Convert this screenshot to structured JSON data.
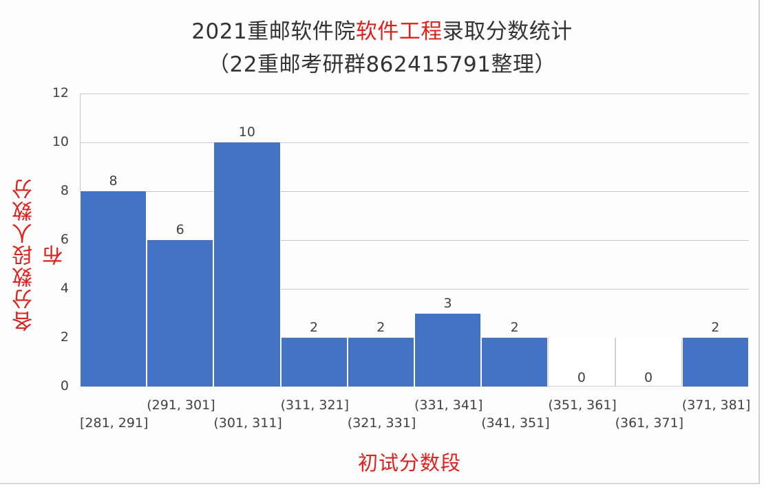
{
  "title": {
    "line1_pre": "2021重邮软件院",
    "line1_highlight": "软件工程",
    "line1_post": "录取分数统计",
    "line2": "（22重邮考研群862415791整理）"
  },
  "colors": {
    "bar": "#4472c4",
    "highlight_text": "#e0201c",
    "axis_text": "#404040",
    "grid": "#c8c8cc"
  },
  "chart_data": {
    "type": "bar",
    "title": "2021重邮软件院软件工程录取分数统计（22重邮考研群862415791整理）",
    "xlabel": "初试分数段",
    "ylabel": "各分数段人数分布",
    "categories": [
      "[281, 291]",
      "(291, 301]",
      "(301, 311]",
      "(311, 321]",
      "(321, 331]",
      "(331, 341]",
      "(341, 351]",
      "(351, 361]",
      "(361, 371]",
      "(371, 381]"
    ],
    "values": [
      8,
      6,
      10,
      2,
      2,
      3,
      2,
      0,
      0,
      2
    ],
    "ylim": [
      0,
      12
    ],
    "yticks": [
      0,
      2,
      4,
      6,
      8,
      10,
      12
    ],
    "grid": true,
    "data_labels": true,
    "legend": "none",
    "histogram": true
  }
}
